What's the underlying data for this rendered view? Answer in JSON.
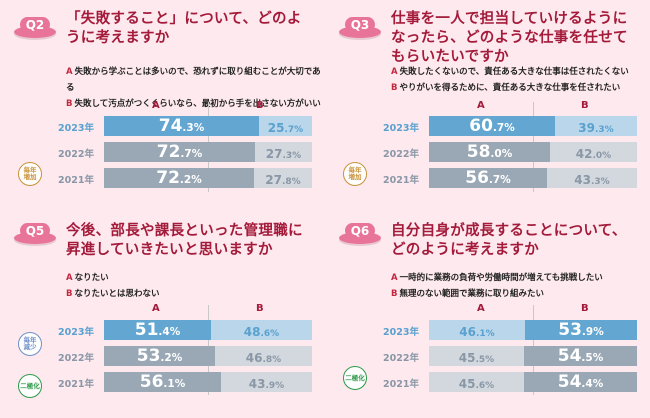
{
  "colors": {
    "background": "#fde9ee",
    "title": "#a41a3a",
    "highlight_dark": "#62a6d1",
    "highlight_light": "#b9d6ea",
    "past_dark": "#9aa8b6",
    "past_light": "#d2d8de",
    "highlight_dark_text": "#ffffff",
    "highlight_light_text": "#5aa1cf",
    "past_dark_text": "#ffffff",
    "past_light_text": "#8a97a6",
    "stamp_increase": "#c8923a",
    "stamp_decrease": "#6e8fc8",
    "stamp_polarize": "#2e9a4a"
  },
  "chart_data": [
    {
      "type": "bar",
      "orientation": "horizontal-stacked-100",
      "id": "Q2",
      "badge": "Q2",
      "title": "「失敗すること」について、どのように考えますか",
      "options": [
        {
          "key": "A",
          "text": "失敗から学ぶことは多いので、恐れずに取り組むことが大切である"
        },
        {
          "key": "B",
          "text": "失敗して汚点がつくくらいなら、最初から手を出さない方がいい"
        }
      ],
      "series_labels": [
        "A",
        "B"
      ],
      "categories": [
        "2023年",
        "2022年",
        "2021年"
      ],
      "series": [
        {
          "name": "A",
          "values": [
            74.3,
            72.7,
            72.2
          ]
        },
        {
          "name": "B",
          "values": [
            25.7,
            27.3,
            27.8
          ]
        }
      ],
      "highlight_series": "A",
      "unit": "%",
      "stamps": [
        {
          "text": "毎年増加",
          "kind": "increase"
        }
      ]
    },
    {
      "type": "bar",
      "orientation": "horizontal-stacked-100",
      "id": "Q3",
      "badge": "Q3",
      "title": "仕事を一人で担当していけるようになったら、どのような仕事を任せてもらいたいですか",
      "options": [
        {
          "key": "A",
          "text": "失敗したくないので、責任ある大きな仕事は任されたくない"
        },
        {
          "key": "B",
          "text": "やりがいを得るために、責任ある大きな仕事を任されたい"
        }
      ],
      "series_labels": [
        "A",
        "B"
      ],
      "categories": [
        "2023年",
        "2022年",
        "2021年"
      ],
      "series": [
        {
          "name": "A",
          "values": [
            60.7,
            58.0,
            56.7
          ]
        },
        {
          "name": "B",
          "values": [
            39.3,
            42.0,
            43.3
          ]
        }
      ],
      "highlight_series": "A",
      "unit": "%",
      "stamps": [
        {
          "text": "毎年増加",
          "kind": "increase"
        }
      ]
    },
    {
      "type": "bar",
      "orientation": "horizontal-stacked-100",
      "id": "Q5",
      "badge": "Q5",
      "title": "今後、部長や課長といった管理職に昇進していきたいと思いますか",
      "options": [
        {
          "key": "A",
          "text": "なりたい"
        },
        {
          "key": "B",
          "text": "なりたいとは思わない"
        }
      ],
      "series_labels": [
        "A",
        "B"
      ],
      "categories": [
        "2023年",
        "2022年",
        "2021年"
      ],
      "series": [
        {
          "name": "A",
          "values": [
            51.4,
            53.2,
            56.1
          ]
        },
        {
          "name": "B",
          "values": [
            48.6,
            46.8,
            43.9
          ]
        }
      ],
      "highlight_series": "A",
      "unit": "%",
      "stamps": [
        {
          "text": "毎年減少",
          "kind": "decrease"
        },
        {
          "text": "二極化",
          "kind": "polarize"
        }
      ]
    },
    {
      "type": "bar",
      "orientation": "horizontal-stacked-100",
      "id": "Q6",
      "badge": "Q6",
      "title": "自分自身が成長することについて、どのように考えますか",
      "options": [
        {
          "key": "A",
          "text": "一時的に業務の負荷や労働時間が増えても挑戦したい"
        },
        {
          "key": "B",
          "text": "無理のない範囲で業務に取り組みたい"
        }
      ],
      "series_labels": [
        "A",
        "B"
      ],
      "categories": [
        "2023年",
        "2022年",
        "2021年"
      ],
      "series": [
        {
          "name": "A",
          "values": [
            46.1,
            45.5,
            45.6
          ]
        },
        {
          "name": "B",
          "values": [
            53.9,
            54.5,
            54.4
          ]
        }
      ],
      "highlight_series": "B",
      "unit": "%",
      "stamps": [
        {
          "text": "二極化",
          "kind": "polarize"
        }
      ]
    }
  ]
}
